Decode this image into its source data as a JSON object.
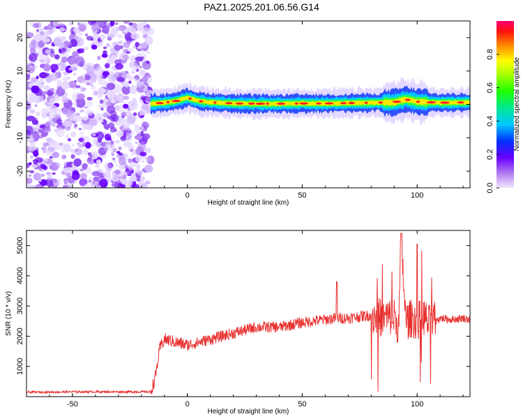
{
  "title": "PAZ1.2025.201.06.56.G14",
  "colors": {
    "snr_line": "#e8312f",
    "axis": "#000000",
    "spectro_noise": "#8a2be2",
    "spectro_signal": "#ff2020"
  },
  "chart_data": [
    {
      "type": "heatmap",
      "xlabel": "Height of straight line (km)",
      "ylabel": "Frequency (Hz)",
      "xlim": [
        -70,
        123
      ],
      "ylim": [
        -25,
        25
      ],
      "xticks": [
        -50,
        0,
        50,
        100
      ],
      "yticks": [
        -20,
        -10,
        0,
        10,
        20
      ],
      "colorbar": {
        "label": "Normalized spectral amplitude",
        "range": [
          0.0,
          1.0
        ],
        "ticks": [
          0.0,
          0.2,
          0.4,
          0.6,
          0.8
        ],
        "colormap": "rainbow (violet to red)"
      },
      "noise_region_x": [
        -70,
        -16
      ],
      "signal_ridge": {
        "x": [
          -16,
          -10,
          -5,
          0,
          5,
          10,
          20,
          30,
          40,
          50,
          60,
          70,
          80,
          90,
          95,
          100,
          110,
          123
        ],
        "y": [
          0.2,
          0.5,
          1.0,
          2.0,
          1.0,
          0.6,
          0.3,
          0.2,
          0.2,
          0.3,
          0.3,
          0.4,
          0.5,
          0.6,
          1.5,
          0.8,
          0.5,
          0.6
        ]
      }
    },
    {
      "type": "line",
      "xlabel": "Height of straight line (km)",
      "ylabel": "SNR (10 * v/v)",
      "xlim": [
        -70,
        123
      ],
      "ylim": [
        0,
        5500
      ],
      "xticks": [
        -50,
        0,
        50,
        100
      ],
      "yticks": [
        1000,
        2000,
        3000,
        4000,
        5000
      ],
      "series": [
        {
          "x": [
            -70,
            -60,
            -50,
            -40,
            -30,
            -20,
            -16,
            -14,
            -12,
            -10,
            -5,
            0,
            10,
            20,
            30,
            40,
            50,
            55,
            60,
            65,
            70,
            75,
            80,
            85,
            90,
            92,
            93,
            95,
            98,
            100,
            103,
            105,
            108,
            110,
            115,
            120,
            123
          ],
          "y": [
            150,
            150,
            160,
            160,
            160,
            160,
            160,
            600,
            1600,
            1900,
            1800,
            1700,
            1900,
            2100,
            2300,
            2300,
            2450,
            2500,
            2550,
            2600,
            2600,
            2650,
            2700,
            2600,
            2650,
            2300,
            5400,
            2500,
            2600,
            2500,
            2650,
            2400,
            2500,
            2600,
            2550,
            2600,
            2550
          ]
        }
      ]
    }
  ]
}
